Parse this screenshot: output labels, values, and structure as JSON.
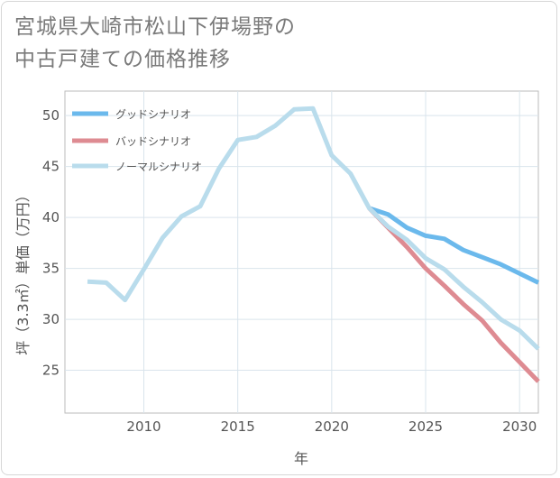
{
  "title_lines": [
    "宮城県大崎市松山下伊場野の",
    "中古戸建ての価格推移"
  ],
  "chart_data": {
    "type": "line",
    "title": "宮城県大崎市松山下伊場野の中古戸建ての価格推移",
    "xlabel": "年",
    "ylabel": "坪（3.3㎡）単価（万円）",
    "xlim": [
      2005.8,
      2031
    ],
    "ylim": [
      20.8,
      52.4
    ],
    "xticks": [
      2010,
      2015,
      2020,
      2025,
      2030
    ],
    "yticks": [
      25,
      30,
      35,
      40,
      45,
      50
    ],
    "legend_position": "top-left",
    "series": [
      {
        "name": "グッドシナリオ",
        "color": "#6bb9ec",
        "x": [
          2022,
          2023,
          2024,
          2025,
          2026,
          2027,
          2028,
          2029,
          2030,
          2031
        ],
        "y": [
          40.9,
          40.3,
          39.0,
          38.2,
          37.9,
          36.8,
          36.1,
          35.4,
          34.5,
          33.6
        ]
      },
      {
        "name": "バッドシナリオ",
        "color": "#de8b92",
        "x": [
          2022,
          2023,
          2024,
          2025,
          2026,
          2027,
          2028,
          2029,
          2030,
          2031
        ],
        "y": [
          40.9,
          39.0,
          37.1,
          35.0,
          33.3,
          31.5,
          29.9,
          27.7,
          25.8,
          23.9
        ]
      },
      {
        "name": "ノーマルシナリオ",
        "color": "#b9dcec",
        "x": [
          2007,
          2008,
          2009,
          2010,
          2011,
          2012,
          2013,
          2014,
          2015,
          2016,
          2017,
          2018,
          2019,
          2020,
          2021,
          2022,
          2023,
          2024,
          2025,
          2026,
          2027,
          2028,
          2029,
          2030,
          2031
        ],
        "y": [
          33.7,
          33.6,
          31.9,
          34.9,
          38.0,
          40.1,
          41.1,
          44.8,
          47.6,
          47.9,
          49.0,
          50.6,
          50.7,
          46.1,
          44.3,
          40.9,
          39.1,
          37.8,
          36.0,
          34.9,
          33.2,
          31.7,
          30.0,
          28.9,
          27.1
        ]
      }
    ]
  }
}
